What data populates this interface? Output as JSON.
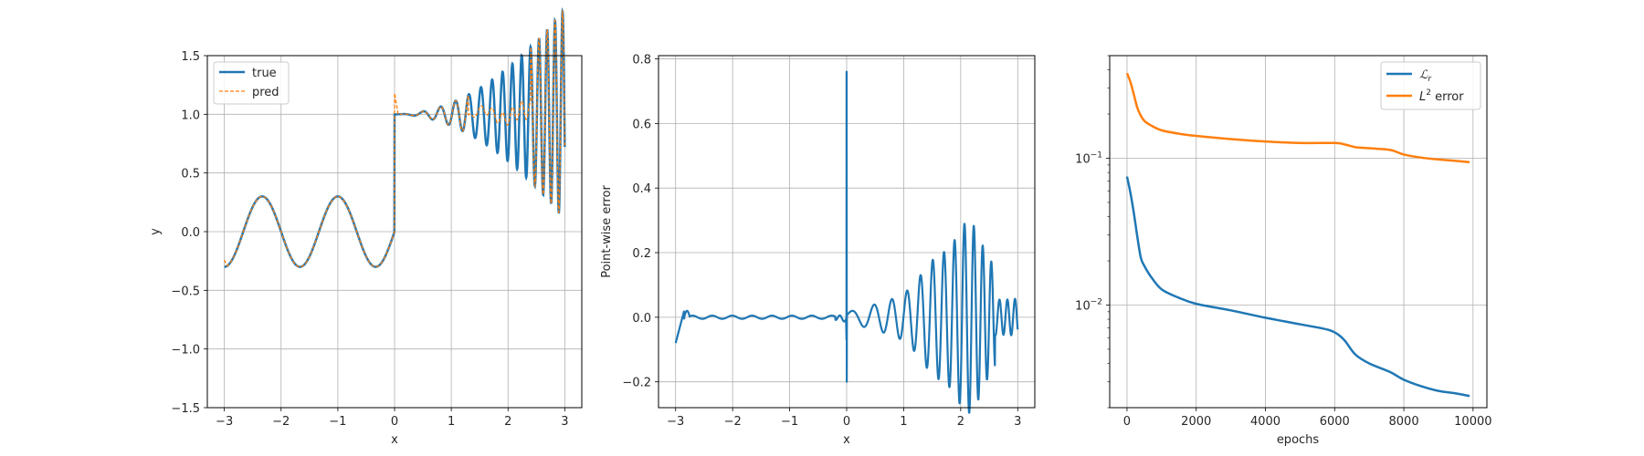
{
  "colors": {
    "blue": "#1f77b4",
    "orange": "#ff7f0e",
    "grid": "#b0b0b0"
  },
  "chart_data": [
    {
      "type": "line",
      "xlabel": "x",
      "ylabel": "y",
      "xlim": [
        -3.3,
        3.3
      ],
      "ylim": [
        -1.5,
        1.5
      ],
      "xticks": [
        -3,
        -2,
        -1,
        0,
        1,
        2,
        3
      ],
      "xtick_labels": [
        "−3",
        "−2",
        "−1",
        "0",
        "1",
        "2",
        "3"
      ],
      "yticks": [
        -1.5,
        -1.0,
        -0.5,
        0.0,
        0.5,
        1.0,
        1.5
      ],
      "ytick_labels": [
        "−1.5",
        "−1.0",
        "−0.5",
        "0.0",
        "0.5",
        "1.0",
        "1.5"
      ],
      "grid": true,
      "legend": "upper-left",
      "series": [
        {
          "name": "true",
          "style": "solid",
          "color": "#1f77b4",
          "description": "y = 0.3*sin(1.5*pi*x) for x<0; y = 1 + 0.1*x^2*sin(... ) growing oscillation for x>=0"
        },
        {
          "name": "pred",
          "style": "dashed",
          "color": "#ff7f0e"
        }
      ]
    },
    {
      "type": "line",
      "xlabel": "x",
      "ylabel": "Point-wise error",
      "xlim": [
        -3.3,
        3.3
      ],
      "ylim": [
        -0.28,
        0.81
      ],
      "xticks": [
        -3,
        -2,
        -1,
        0,
        1,
        2,
        3
      ],
      "xtick_labels": [
        "−3",
        "−2",
        "−1",
        "0",
        "1",
        "2",
        "3"
      ],
      "yticks": [
        -0.2,
        0.0,
        0.2,
        0.4,
        0.6,
        0.8
      ],
      "ytick_labels": [
        "−0.2",
        "0.0",
        "0.2",
        "0.4",
        "0.6",
        "0.8"
      ],
      "grid": true,
      "series": [
        {
          "name": "",
          "color": "#1f77b4"
        }
      ]
    },
    {
      "type": "line",
      "xlabel": "epochs",
      "ylabel": "",
      "yscale": "log",
      "xlim": [
        -500,
        10400
      ],
      "ylim": [
        0.002,
        0.5
      ],
      "xticks": [
        0,
        2000,
        4000,
        6000,
        8000,
        10000
      ],
      "xtick_labels": [
        "0",
        "2000",
        "4000",
        "6000",
        "8000",
        "10000"
      ],
      "yticks": [
        0.01,
        0.1
      ],
      "grid": true,
      "legend": "upper-right",
      "series": [
        {
          "name": "ℒ",
          "sub": "r",
          "color": "#1f77b4",
          "x": [
            0,
            100,
            200,
            300,
            400,
            500,
            700,
            1000,
            1500,
            2000,
            3000,
            4000,
            5000,
            5800,
            6100,
            6300,
            6600,
            7000,
            7600,
            8000,
            8500,
            9000,
            9500,
            9900
          ],
          "y": [
            0.075,
            0.058,
            0.042,
            0.029,
            0.021,
            0.0185,
            0.0155,
            0.0128,
            0.0112,
            0.0102,
            0.0092,
            0.0082,
            0.0074,
            0.0068,
            0.0063,
            0.0057,
            0.0046,
            0.004,
            0.0035,
            0.0031,
            0.0028,
            0.0026,
            0.0025,
            0.0024
          ]
        },
        {
          "name": "L",
          "sup": "2",
          "suffix": " error",
          "color": "#ff7f0e",
          "x": [
            0,
            100,
            200,
            300,
            400,
            500,
            700,
            1000,
            1500,
            2000,
            3000,
            4000,
            5000,
            6000,
            6300,
            6600,
            7000,
            7600,
            8000,
            8500,
            9000,
            9500,
            9900
          ],
          "y": [
            0.38,
            0.33,
            0.27,
            0.22,
            0.195,
            0.18,
            0.167,
            0.155,
            0.147,
            0.142,
            0.135,
            0.13,
            0.127,
            0.127,
            0.124,
            0.119,
            0.117,
            0.114,
            0.106,
            0.101,
            0.098,
            0.096,
            0.094
          ]
        }
      ]
    }
  ]
}
